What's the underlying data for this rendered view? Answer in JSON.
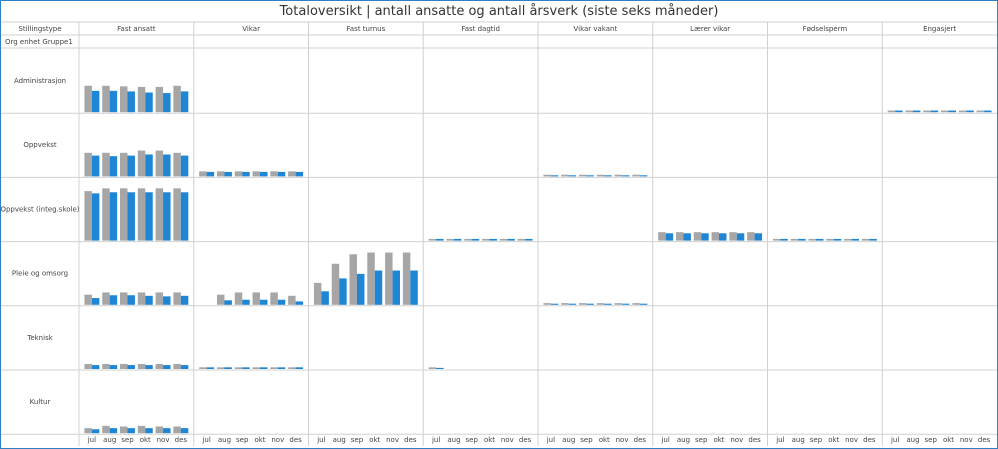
{
  "title": "Totaloversikt | antall ansatte og antall årsverk (siste seks måneder)",
  "header_label": "Stillingstype",
  "subheader_label": "Org enhet Gruppe1",
  "colors": {
    "ansatte": "#a6a6a6",
    "arsverk": "#1f86d6",
    "border": "#2f7fc4",
    "gridline": "#d0d0d0"
  },
  "chart_data": {
    "type": "bar",
    "layout": "small-multiples",
    "columns": [
      "Fast ansatt",
      "Vikar",
      "Fast turnus",
      "Fast dagtid",
      "Vikar vakant",
      "Lærer vikar",
      "Fødselsperm",
      "Engasjert"
    ],
    "rows": [
      "Administrasjon",
      "Oppvekst",
      "Oppvekst (integ.skole)",
      "Pleie og omsorg",
      "Teknisk",
      "Kultur"
    ],
    "categories": [
      "jul",
      "aug",
      "sep",
      "okt",
      "nov",
      "des"
    ],
    "series_order": [
      "ansatte",
      "arsverk"
    ],
    "ylim": [
      0,
      1
    ],
    "grid": true,
    "cells": {
      "Administrasjon": {
        "Fast ansatt": {
          "ansatte": [
            0.47,
            0.47,
            0.46,
            0.45,
            0.45,
            0.47
          ],
          "arsverk": [
            0.38,
            0.38,
            0.37,
            0.35,
            0.34,
            0.37
          ]
        },
        "Engasjert": {
          "ansatte": [
            0.03,
            0.03,
            0.03,
            0.03,
            0.03,
            0.03
          ],
          "arsverk": [
            0.03,
            0.03,
            0.03,
            0.03,
            0.03,
            0.03
          ]
        }
      },
      "Oppvekst": {
        "Fast ansatt": {
          "ansatte": [
            0.42,
            0.42,
            0.42,
            0.46,
            0.46,
            0.42
          ],
          "arsverk": [
            0.37,
            0.36,
            0.37,
            0.39,
            0.39,
            0.37
          ]
        },
        "Vikar": {
          "ansatte": [
            0.09,
            0.09,
            0.09,
            0.09,
            0.09,
            0.09
          ],
          "arsverk": [
            0.08,
            0.08,
            0.08,
            0.08,
            0.08,
            0.08
          ]
        },
        "Vikar vakant": {
          "ansatte": [
            0.03,
            0.03,
            0.03,
            0.03,
            0.03,
            0.03
          ],
          "arsverk": [
            0.02,
            0.02,
            0.02,
            0.02,
            0.02,
            0.02
          ]
        }
      },
      "Oppvekst (integ.skole)": {
        "Fast ansatt": {
          "ansatte": [
            0.88,
            0.93,
            0.93,
            0.93,
            0.93,
            0.93
          ],
          "arsverk": [
            0.84,
            0.86,
            0.86,
            0.86,
            0.86,
            0.86
          ]
        },
        "Fast dagtid": {
          "ansatte": [
            0.03,
            0.03,
            0.03,
            0.03,
            0.03,
            0.03
          ],
          "arsverk": [
            0.03,
            0.03,
            0.03,
            0.03,
            0.03,
            0.03
          ]
        },
        "Lærer vikar": {
          "ansatte": [
            0.15,
            0.15,
            0.15,
            0.15,
            0.15,
            0.15
          ],
          "arsverk": [
            0.13,
            0.13,
            0.13,
            0.13,
            0.13,
            0.13
          ]
        },
        "Fødselsperm": {
          "ansatte": [
            0.03,
            0.03,
            0.03,
            0.03,
            0.03,
            0.03
          ],
          "arsverk": [
            0.03,
            0.03,
            0.03,
            0.03,
            0.03,
            0.03
          ]
        }
      },
      "Pleie og omsorg": {
        "Fast ansatt": {
          "ansatte": [
            0.18,
            0.22,
            0.22,
            0.22,
            0.22,
            0.22
          ],
          "arsverk": [
            0.12,
            0.17,
            0.17,
            0.16,
            0.15,
            0.16
          ]
        },
        "Vikar": {
          "ansatte": [
            0.0,
            0.18,
            0.22,
            0.22,
            0.22,
            0.16
          ],
          "arsverk": [
            0.0,
            0.08,
            0.09,
            0.09,
            0.09,
            0.06
          ]
        },
        "Fast turnus": {
          "ansatte": [
            0.39,
            0.73,
            0.9,
            0.93,
            0.93,
            0.93
          ],
          "arsverk": [
            0.24,
            0.47,
            0.55,
            0.61,
            0.61,
            0.61
          ]
        },
        "Vikar vakant": {
          "ansatte": [
            0.03,
            0.03,
            0.03,
            0.03,
            0.03,
            0.03
          ],
          "arsverk": [
            0.02,
            0.02,
            0.02,
            0.02,
            0.02,
            0.02
          ]
        }
      },
      "Teknisk": {
        "Fast ansatt": {
          "ansatte": [
            0.09,
            0.09,
            0.09,
            0.09,
            0.09,
            0.09
          ],
          "arsverk": [
            0.07,
            0.07,
            0.07,
            0.07,
            0.07,
            0.07
          ]
        },
        "Vikar": {
          "ansatte": [
            0.03,
            0.03,
            0.03,
            0.03,
            0.03,
            0.03
          ],
          "arsverk": [
            0.03,
            0.03,
            0.03,
            0.03,
            0.03,
            0.03
          ]
        },
        "Fast dagtid": {
          "ansatte": [
            0.03,
            0.0,
            0.0,
            0.0,
            0.0,
            0.0
          ],
          "arsverk": [
            0.02,
            0.0,
            0.0,
            0.0,
            0.0,
            0.0
          ]
        }
      },
      "Kultur": {
        "Fast ansatt": {
          "ansatte": [
            0.09,
            0.13,
            0.12,
            0.13,
            0.12,
            0.12
          ],
          "arsverk": [
            0.07,
            0.09,
            0.09,
            0.09,
            0.09,
            0.09
          ]
        }
      }
    }
  }
}
